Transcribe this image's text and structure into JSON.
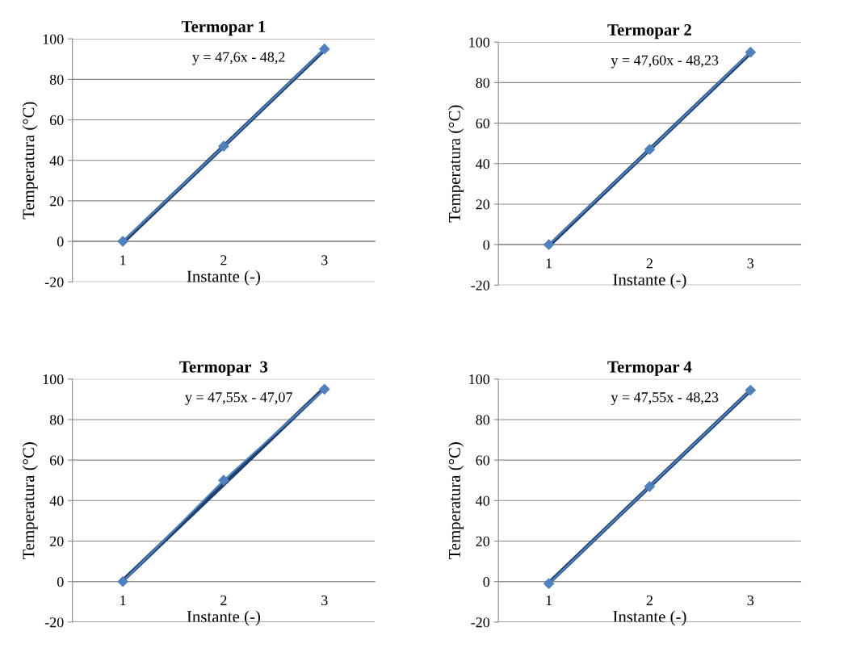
{
  "chart_data": [
    {
      "type": "line",
      "title": "Termopar 1",
      "xlabel": "Instante (-)",
      "ylabel": "Temperatura (°C)",
      "categories": [
        "1",
        "2",
        "3"
      ],
      "ylim": [
        -20,
        100
      ],
      "yticks": [
        -20,
        0,
        20,
        40,
        60,
        80,
        100
      ],
      "grid": "y",
      "annotations": [
        "y = 47,6x - 48,2"
      ],
      "series": [
        {
          "color": "#4f81bd",
          "marker": "diamond",
          "values": [
            0,
            47,
            95
          ]
        },
        {
          "color": "#1f3f6e",
          "values": [
            -0.6,
            47,
            94.6
          ]
        }
      ]
    },
    {
      "type": "line",
      "title": "Termopar 2",
      "xlabel": "Instante (-)",
      "ylabel": "Temperatura (°C)",
      "categories": [
        "1",
        "2",
        "3"
      ],
      "ylim": [
        -20,
        100
      ],
      "yticks": [
        -20,
        0,
        20,
        40,
        60,
        80,
        100
      ],
      "grid": "y",
      "annotations": [
        "y = 47,60x - 48,23"
      ],
      "series": [
        {
          "color": "#4f81bd",
          "marker": "diamond",
          "values": [
            0,
            47,
            95
          ]
        },
        {
          "color": "#1f3f6e",
          "values": [
            -0.6,
            47,
            94.6
          ]
        }
      ]
    },
    {
      "type": "line",
      "title": "Termopar  3",
      "xlabel": "Instante (-)",
      "ylabel": "Temperatura (°C)",
      "categories": [
        "1",
        "2",
        "3"
      ],
      "ylim": [
        -20,
        100
      ],
      "yticks": [
        -20,
        0,
        20,
        40,
        60,
        80,
        100
      ],
      "grid": "y",
      "annotations": [
        "y = 47,55x - 47,07"
      ],
      "series": [
        {
          "color": "#4f81bd",
          "marker": "diamond",
          "values": [
            0,
            50,
            95
          ]
        },
        {
          "color": "#1f3f6e",
          "values": [
            0.5,
            48,
            95.6
          ]
        }
      ]
    },
    {
      "type": "line",
      "title": "Termopar 4",
      "xlabel": "Instante (-)",
      "ylabel": "Temperatura (°C)",
      "categories": [
        "1",
        "2",
        "3"
      ],
      "ylim": [
        -20,
        100
      ],
      "yticks": [
        -20,
        0,
        20,
        40,
        60,
        80,
        100
      ],
      "grid": "y",
      "annotations": [
        "y = 47,55x - 48,23"
      ],
      "series": [
        {
          "color": "#4f81bd",
          "marker": "diamond",
          "values": [
            -1,
            47,
            94.5
          ]
        },
        {
          "color": "#1f3f6e",
          "values": [
            -0.7,
            46.9,
            94.4
          ]
        }
      ]
    }
  ]
}
